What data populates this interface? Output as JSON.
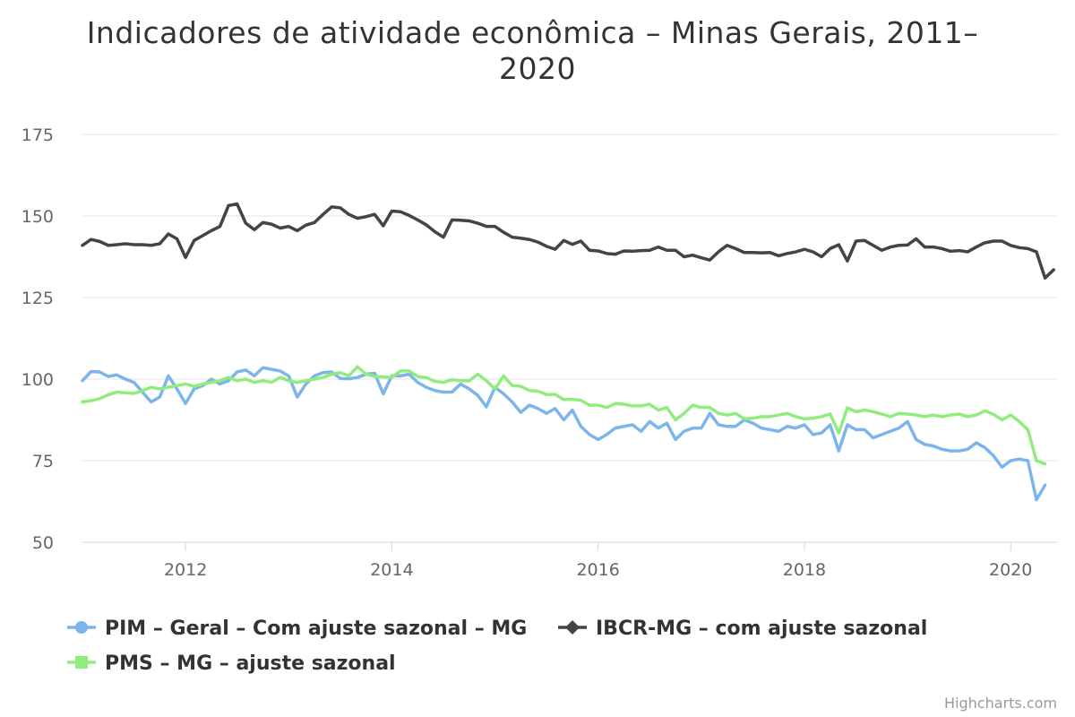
{
  "chart_data": {
    "type": "line",
    "title": "Indicadores de atividade econômica - Minas Gerais, 2011-2020",
    "title_lines": [
      "Indicadores de atividade econômica – Minas Gerais, 2011–",
      "2020"
    ],
    "xlabel": "",
    "ylabel": "",
    "x_start": "2011-01",
    "x_end": "2020-05",
    "x_ticks": [
      2012,
      2014,
      2016,
      2018,
      2020
    ],
    "x_range": [
      2011.0,
      2020.45
    ],
    "ylim": [
      50,
      175
    ],
    "y_ticks": [
      50,
      75,
      100,
      125,
      150,
      175
    ],
    "grid": true,
    "legend_position": "bottom",
    "credits": "Highcharts.com",
    "series": [
      {
        "name": "PIM - Geral - Com ajuste sazonal - MG",
        "color": "#7cb5ec",
        "marker": "circle",
        "values": [
          99.5,
          102.3,
          102.2,
          100.8,
          101.3,
          100,
          99,
          96,
          93,
          94.5,
          101,
          97,
          92.5,
          97,
          98,
          100,
          98.5,
          99.5,
          102.2,
          102.8,
          101,
          103.5,
          103,
          102.5,
          101,
          94.5,
          98.5,
          101,
          102,
          102.2,
          100.2,
          100.1,
          100.5,
          101.5,
          101.8,
          95.5,
          101,
          101,
          101.5,
          99,
          97.5,
          96.5,
          96,
          96,
          98.5,
          97,
          95,
          91.5,
          97.5,
          95.5,
          93,
          89.8,
          92,
          91,
          89.5,
          91,
          87.5,
          90.5,
          85.5,
          83,
          81.5,
          83,
          85,
          85.5,
          86,
          84,
          87,
          85,
          86.5,
          81.5,
          84,
          85,
          85,
          89.5,
          86,
          85.5,
          85.5,
          87.5,
          86.5,
          85,
          84.5,
          84,
          85.5,
          85,
          86,
          83,
          83.5,
          86,
          78,
          86,
          84.5,
          84.5,
          82,
          83,
          84,
          85,
          87,
          81.5,
          80,
          79.5,
          78.5,
          78,
          78,
          78.5,
          80.5,
          79,
          76.5,
          73,
          75,
          75.5,
          75,
          63,
          67.5
        ]
      },
      {
        "name": "IBCR-MG - com ajuste sazonal",
        "color": "#434348",
        "marker": "diamond",
        "values": [
          141,
          142.8,
          142.2,
          141,
          141.2,
          141.5,
          141.2,
          141.2,
          141,
          141.5,
          144.5,
          143,
          137.3,
          142.5,
          144,
          145.5,
          146.8,
          153.2,
          153.7,
          147.8,
          145.8,
          148,
          147.5,
          146.3,
          146.8,
          145.5,
          147.2,
          148,
          150.5,
          152.8,
          152.5,
          150.5,
          149.3,
          149.8,
          150.5,
          147,
          151.5,
          151.3,
          150.2,
          148.8,
          147.3,
          145.2,
          143.5,
          148.8,
          148.7,
          148.5,
          147.8,
          146.8,
          146.8,
          145,
          143.5,
          143.2,
          142.8,
          142,
          140.7,
          139.8,
          142.5,
          141.3,
          142.3,
          139.5,
          139.3,
          138.5,
          138.3,
          139.3,
          139.2,
          139.4,
          139.5,
          140.5,
          139.5,
          139.5,
          137.5,
          138,
          137.2,
          136.5,
          139,
          141,
          140,
          138.8,
          138.8,
          138.7,
          138.8,
          137.8,
          138.5,
          139,
          139.8,
          139,
          137.5,
          140,
          141.2,
          136.2,
          142.3,
          142.5,
          141,
          139.5,
          140.5,
          141,
          141.1,
          143,
          140.5,
          140.5,
          140,
          139.2,
          139.4,
          139,
          140.5,
          141.8,
          142.3,
          142.3,
          141,
          140.3,
          140,
          139,
          131,
          133.5
        ]
      },
      {
        "name": "PMS - MG - ajuste sazonal",
        "color": "#90ed7d",
        "marker": "square",
        "values": [
          93,
          93.4,
          94,
          95.2,
          96,
          95.8,
          95.6,
          96.5,
          97.5,
          97,
          97.5,
          98,
          98.5,
          97.8,
          98.5,
          99,
          99.5,
          100.5,
          99.5,
          100,
          99,
          99.5,
          99,
          100.5,
          99.5,
          99,
          99.5,
          100,
          100.5,
          101.5,
          102,
          101,
          103.8,
          101.5,
          100.8,
          100.7,
          100.5,
          102.5,
          102.5,
          100.8,
          100.5,
          99.3,
          99,
          99.8,
          99.5,
          99.5,
          101.5,
          99.5,
          97,
          101,
          98,
          97.8,
          96.5,
          96.3,
          95.3,
          95.3,
          93.7,
          93.8,
          93.5,
          92,
          92,
          91.3,
          92.5,
          92.3,
          91.8,
          91.8,
          92.3,
          90.5,
          91.3,
          87.5,
          89.5,
          92,
          91.3,
          91.3,
          89.5,
          89,
          89.5,
          87.8,
          88,
          88.5,
          88.5,
          89,
          89.5,
          88.5,
          87.8,
          88,
          88.5,
          89.3,
          83.5,
          91.2,
          90,
          90.5,
          90,
          89.3,
          88.5,
          89.5,
          89.3,
          89,
          88.5,
          89,
          88.5,
          89,
          89.3,
          88.5,
          89,
          90.3,
          89.2,
          87.5,
          89,
          87,
          84.5,
          75,
          74
        ]
      }
    ]
  }
}
